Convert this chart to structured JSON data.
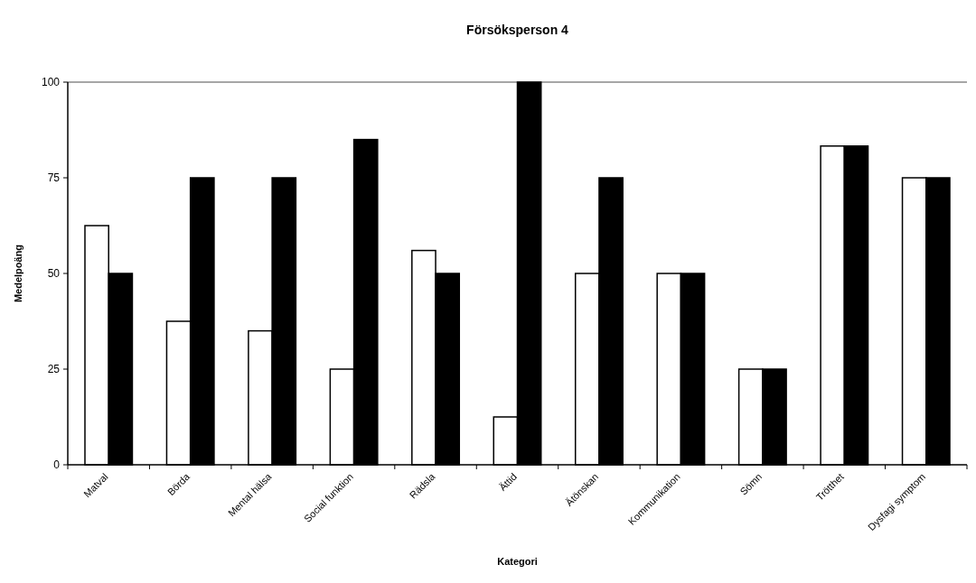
{
  "chart_data": {
    "type": "bar",
    "title": "Försöksperson 4",
    "xlabel": "Kategori",
    "ylabel": "Medelpoäng",
    "categories": [
      "Matval",
      "Börda",
      "Mental hälsa",
      "Social funktion",
      "Rädsla",
      "Ättid",
      "Ätönskan",
      "Kommunikation",
      "Sömn",
      "Trötthet",
      "Dysfagi symptom"
    ],
    "series": [
      {
        "color": "#ffffff",
        "values": [
          62.5,
          37.5,
          35,
          25,
          56,
          12.5,
          50,
          50,
          25,
          83.3,
          75
        ]
      },
      {
        "color": "#000000",
        "values": [
          50,
          75,
          75,
          85,
          50,
          100,
          75,
          50,
          25,
          83.3,
          75
        ]
      }
    ],
    "ylim": [
      0,
      100
    ],
    "yticks": [
      0,
      25,
      50,
      75,
      100
    ],
    "grid": false
  }
}
